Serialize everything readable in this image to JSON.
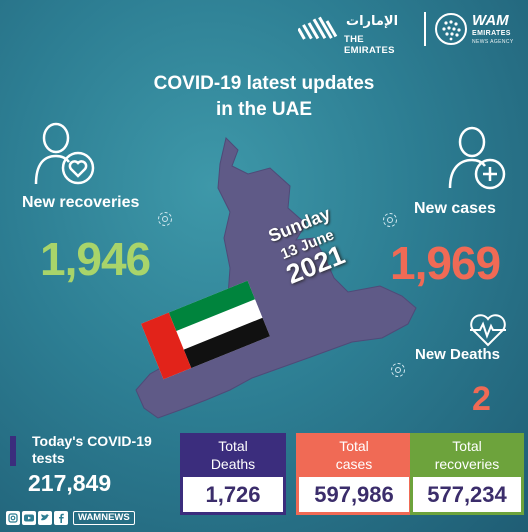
{
  "header": {
    "emirates_arabic": "الإمارات",
    "emirates_latin": "THE EMIRATES",
    "wam_name": "WAM",
    "wam_sub": "EMIRATES",
    "wam_sub2": "NEWS AGENCY"
  },
  "title": {
    "line1": "COVID-19 latest updates",
    "line2": "in the UAE"
  },
  "date": {
    "day": "Sunday",
    "day_month": "13 June",
    "year": "2021"
  },
  "recoveries": {
    "label": "New recoveries",
    "value": "1,946",
    "icon": "person-heart-icon"
  },
  "cases": {
    "label": "New cases",
    "value": "1,969",
    "icon": "person-plus-icon"
  },
  "deaths": {
    "label": "New Deaths",
    "value": "2",
    "icon": "heartbeat-icon"
  },
  "tests": {
    "label_line1": "Today's COVID-19",
    "label_line2": "tests",
    "value": "217,849"
  },
  "totals": {
    "deaths": {
      "label_line1": "Total",
      "label_line2": "Deaths",
      "value": "1,726"
    },
    "cases": {
      "label_line1": "Total",
      "label_line2": "cases",
      "value": "597,986"
    },
    "recoveries": {
      "label_line1": "Total",
      "label_line2": "recoveries",
      "value": "577,234"
    }
  },
  "footer": {
    "handle": "WAMNEWS"
  },
  "colors": {
    "green": "#a9d46a",
    "coral": "#f06a55",
    "purple": "#3b2d7d",
    "total_green": "#6da33c",
    "map": "#5f5a87"
  }
}
